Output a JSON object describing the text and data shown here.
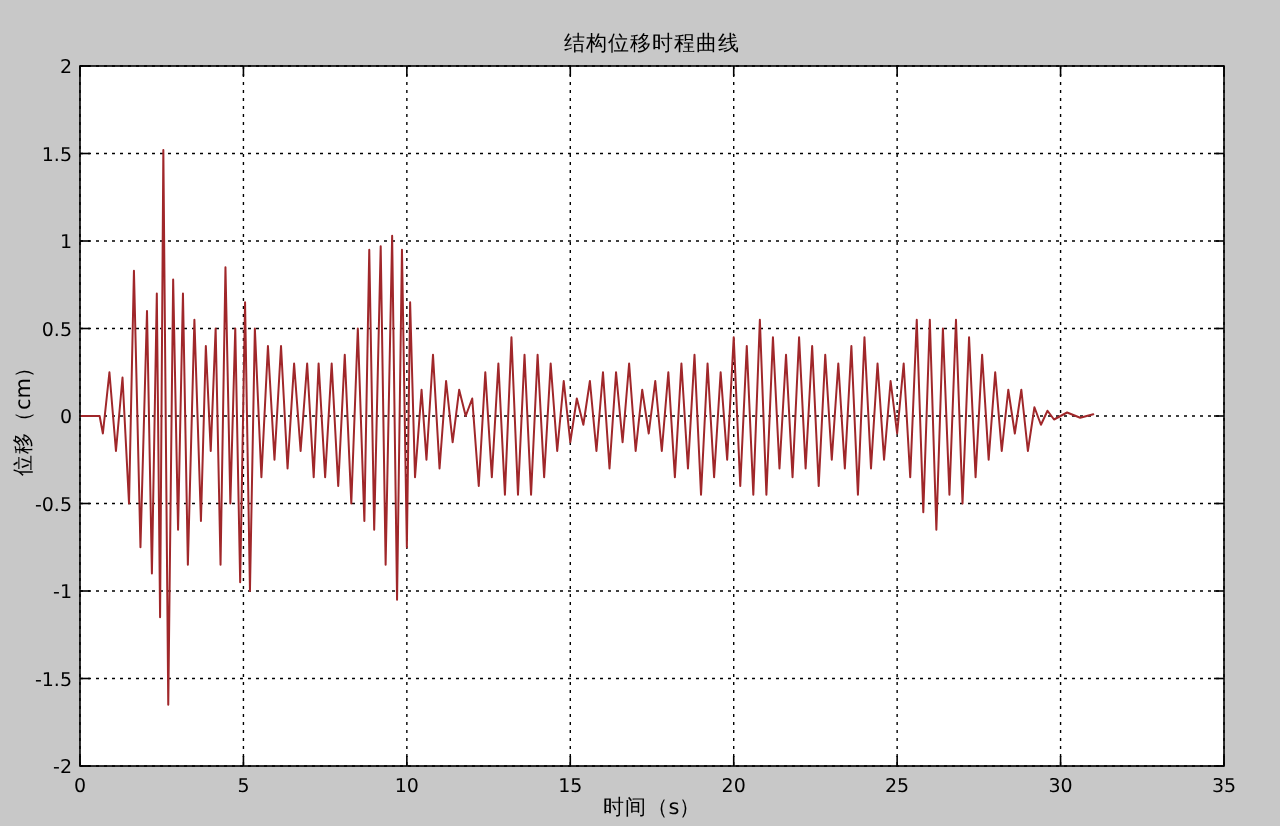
{
  "chart_data": {
    "type": "line",
    "title": "结构位移时程曲线",
    "xlabel": "时间（s）",
    "ylabel": "位移（cm）",
    "xlim": [
      0,
      35
    ],
    "ylim": [
      -2,
      2
    ],
    "xticks": [
      0,
      5,
      10,
      15,
      20,
      25,
      30,
      35
    ],
    "yticks": [
      -2,
      -1.5,
      -1,
      -0.5,
      0,
      0.5,
      1,
      1.5,
      2
    ],
    "grid": true,
    "marker": "none",
    "line_style": "solid",
    "series": [
      {
        "color": "#a0272a",
        "x": [
          0,
          0.6,
          0.7,
          0.9,
          1.1,
          1.3,
          1.5,
          1.65,
          1.85,
          2.05,
          2.2,
          2.35,
          2.45,
          2.55,
          2.7,
          2.85,
          3.0,
          3.15,
          3.3,
          3.5,
          3.7,
          3.85,
          4.0,
          4.15,
          4.3,
          4.45,
          4.6,
          4.75,
          4.9,
          5.05,
          5.2,
          5.35,
          5.55,
          5.75,
          5.95,
          6.15,
          6.35,
          6.55,
          6.75,
          6.95,
          7.15,
          7.3,
          7.5,
          7.7,
          7.9,
          8.1,
          8.3,
          8.5,
          8.7,
          8.85,
          9.0,
          9.2,
          9.35,
          9.55,
          9.7,
          9.85,
          10.0,
          10.1,
          10.25,
          10.45,
          10.6,
          10.8,
          11.0,
          11.2,
          11.4,
          11.6,
          11.8,
          12.0,
          12.2,
          12.4,
          12.6,
          12.8,
          13.0,
          13.2,
          13.4,
          13.6,
          13.8,
          14.0,
          14.2,
          14.4,
          14.6,
          14.8,
          15.0,
          15.2,
          15.4,
          15.6,
          15.8,
          16.0,
          16.2,
          16.4,
          16.6,
          16.8,
          17.0,
          17.2,
          17.4,
          17.6,
          17.8,
          18.0,
          18.2,
          18.4,
          18.6,
          18.8,
          19.0,
          19.2,
          19.4,
          19.6,
          19.8,
          20.0,
          20.2,
          20.4,
          20.6,
          20.8,
          21.0,
          21.2,
          21.4,
          21.6,
          21.8,
          22.0,
          22.2,
          22.4,
          22.6,
          22.8,
          23.0,
          23.2,
          23.4,
          23.6,
          23.8,
          24.0,
          24.2,
          24.4,
          24.6,
          24.8,
          25.0,
          25.2,
          25.4,
          25.6,
          25.8,
          26.0,
          26.2,
          26.4,
          26.6,
          26.8,
          27.0,
          27.2,
          27.4,
          27.6,
          27.8,
          28.0,
          28.2,
          28.4,
          28.6,
          28.8,
          29.0,
          29.2,
          29.4,
          29.6,
          29.8,
          30.2,
          30.6,
          31.0
        ],
        "values": [
          0,
          0,
          -0.1,
          0.25,
          -0.2,
          0.22,
          -0.5,
          0.83,
          -0.75,
          0.6,
          -0.9,
          0.7,
          -1.15,
          1.52,
          -1.65,
          0.78,
          -0.65,
          0.7,
          -0.85,
          0.55,
          -0.6,
          0.4,
          -0.2,
          0.5,
          -0.85,
          0.85,
          -0.5,
          0.5,
          -0.95,
          0.65,
          -1.0,
          0.5,
          -0.35,
          0.4,
          -0.25,
          0.4,
          -0.3,
          0.3,
          -0.2,
          0.3,
          -0.35,
          0.3,
          -0.35,
          0.3,
          -0.4,
          0.35,
          -0.5,
          0.5,
          -0.6,
          0.95,
          -0.65,
          0.97,
          -0.85,
          1.03,
          -1.05,
          0.95,
          -0.75,
          0.65,
          -0.35,
          0.15,
          -0.25,
          0.35,
          -0.3,
          0.2,
          -0.15,
          0.15,
          0.0,
          0.1,
          -0.4,
          0.25,
          -0.35,
          0.3,
          -0.45,
          0.45,
          -0.45,
          0.35,
          -0.45,
          0.35,
          -0.35,
          0.3,
          -0.2,
          0.2,
          -0.15,
          0.1,
          -0.05,
          0.2,
          -0.2,
          0.25,
          -0.3,
          0.25,
          -0.15,
          0.3,
          -0.2,
          0.15,
          -0.1,
          0.2,
          -0.2,
          0.25,
          -0.35,
          0.3,
          -0.3,
          0.35,
          -0.45,
          0.3,
          -0.35,
          0.25,
          -0.25,
          0.45,
          -0.4,
          0.4,
          -0.45,
          0.55,
          -0.45,
          0.45,
          -0.3,
          0.35,
          -0.35,
          0.45,
          -0.3,
          0.4,
          -0.4,
          0.35,
          -0.25,
          0.3,
          -0.3,
          0.4,
          -0.45,
          0.45,
          -0.3,
          0.3,
          -0.25,
          0.2,
          -0.1,
          0.3,
          -0.35,
          0.55,
          -0.55,
          0.55,
          -0.65,
          0.5,
          -0.45,
          0.55,
          -0.5,
          0.45,
          -0.35,
          0.35,
          -0.25,
          0.25,
          -0.2,
          0.15,
          -0.1,
          0.15,
          -0.2,
          0.05,
          -0.05,
          0.03,
          -0.02,
          0.02,
          -0.01,
          0.01
        ]
      }
    ]
  }
}
